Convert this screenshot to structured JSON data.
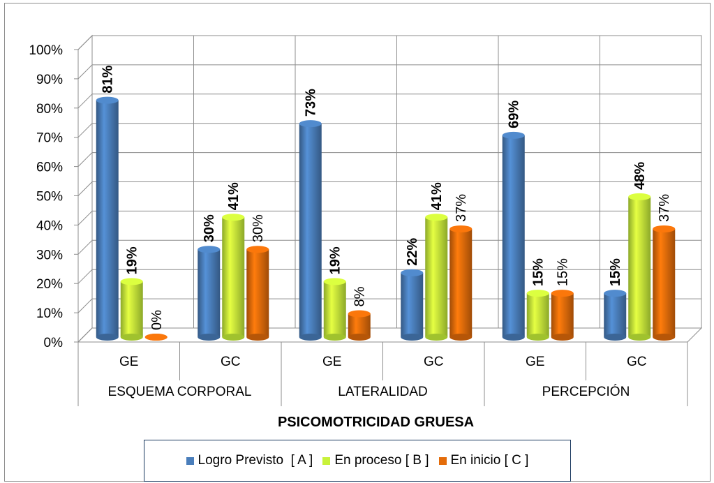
{
  "chart_data": {
    "type": "bar",
    "xlabel": "PSICOMOTRICIDAD GRUESA",
    "ylabel": "",
    "ylim": [
      0,
      100
    ],
    "y_ticks": [
      "0%",
      "10%",
      "20%",
      "30%",
      "40%",
      "50%",
      "60%",
      "70%",
      "80%",
      "90%",
      "100%"
    ],
    "groups": [
      "ESQUEMA CORPORAL",
      "LATERALIDAD",
      "PERCEPCIÓN"
    ],
    "categories": [
      "GE",
      "GC",
      "GE",
      "GC",
      "GE",
      "GC"
    ],
    "series": [
      {
        "name": "Logro Previsto  [ A ]",
        "color": "#4a7ebb",
        "values": [
          81,
          30,
          73,
          22,
          69,
          15
        ],
        "labels": [
          "81%",
          "30%",
          "73%",
          "22%",
          "69%",
          "15%"
        ]
      },
      {
        "name": "En proceso [ B ]",
        "color": "#c8f23a",
        "values": [
          19,
          41,
          19,
          41,
          15,
          48
        ],
        "labels": [
          "19%",
          "41%",
          "19%",
          "41%",
          "15%",
          "48%"
        ]
      },
      {
        "name": "En inicio [ C ]",
        "color": "#e46c0a",
        "values": [
          0,
          30,
          8,
          37,
          15,
          37
        ],
        "labels": [
          "0%",
          "30%",
          "8%",
          "37%",
          "15%",
          "37%"
        ]
      }
    ],
    "grid": true,
    "legend_position": "bottom"
  }
}
